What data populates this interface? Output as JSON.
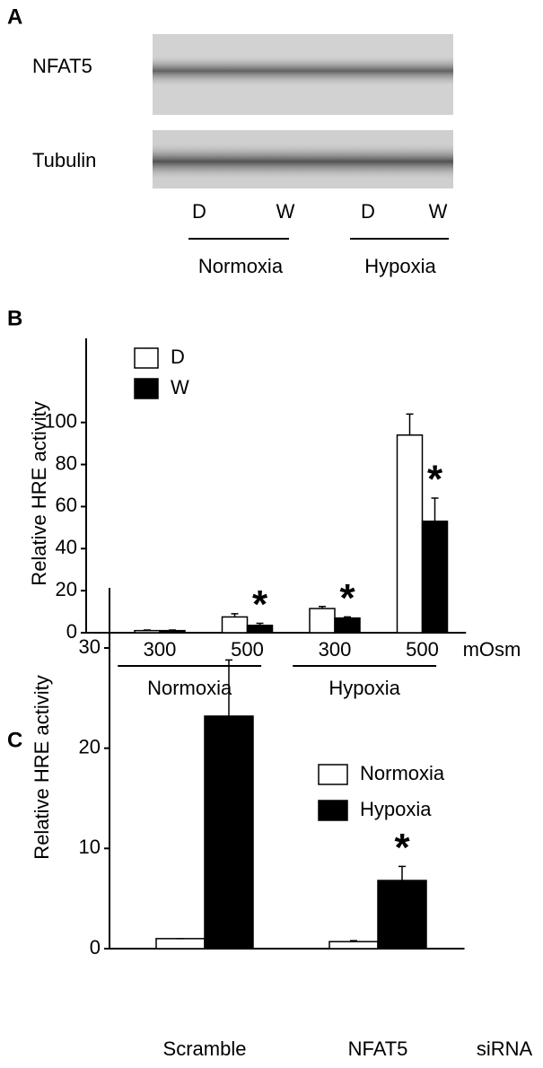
{
  "panel_labels": [
    "A",
    "B",
    "C"
  ],
  "blot": {
    "rows": [
      "NFAT5",
      "Tubulin"
    ],
    "lanes": [
      "D",
      "W",
      "D",
      "W"
    ],
    "groups": [
      "Normoxia",
      "Hypoxia"
    ]
  },
  "chart_data": [
    {
      "type": "bar",
      "y_label": "Relative HRE activity",
      "x_unit": "mOsm",
      "categories": [
        "300",
        "500",
        "300",
        "500"
      ],
      "groups": [
        "Normoxia",
        "Hypoxia"
      ],
      "series": [
        {
          "name": "D",
          "color": "#ffffff",
          "values": [
            1,
            7.5,
            11.5,
            94
          ],
          "errors": [
            0.3,
            1.5,
            1,
            10
          ]
        },
        {
          "name": "W",
          "color": "#000000",
          "values": [
            1,
            3.5,
            7,
            53
          ],
          "errors": [
            0.3,
            1,
            0.5,
            11
          ]
        }
      ],
      "marker_labels": [
        null,
        "*",
        "*",
        "*"
      ],
      "ylim": [
        0,
        140
      ],
      "yticks": [
        0,
        20,
        40,
        60,
        80,
        100
      ]
    },
    {
      "type": "bar",
      "y_label": "Relative HRE activity",
      "x_unit": "siRNA",
      "categories": [
        "Scramble",
        "NFAT5"
      ],
      "series": [
        {
          "name": "Normoxia",
          "color": "#ffffff",
          "values": [
            1,
            0.7
          ],
          "errors": [
            0,
            0.1
          ]
        },
        {
          "name": "Hypoxia",
          "color": "#000000",
          "values": [
            23.2,
            6.8
          ],
          "errors": [
            5.6,
            1.4
          ]
        }
      ],
      "marker_labels": [
        null,
        "*"
      ],
      "ylim": [
        0,
        36
      ],
      "yticks": [
        0,
        10,
        20,
        30
      ]
    }
  ]
}
